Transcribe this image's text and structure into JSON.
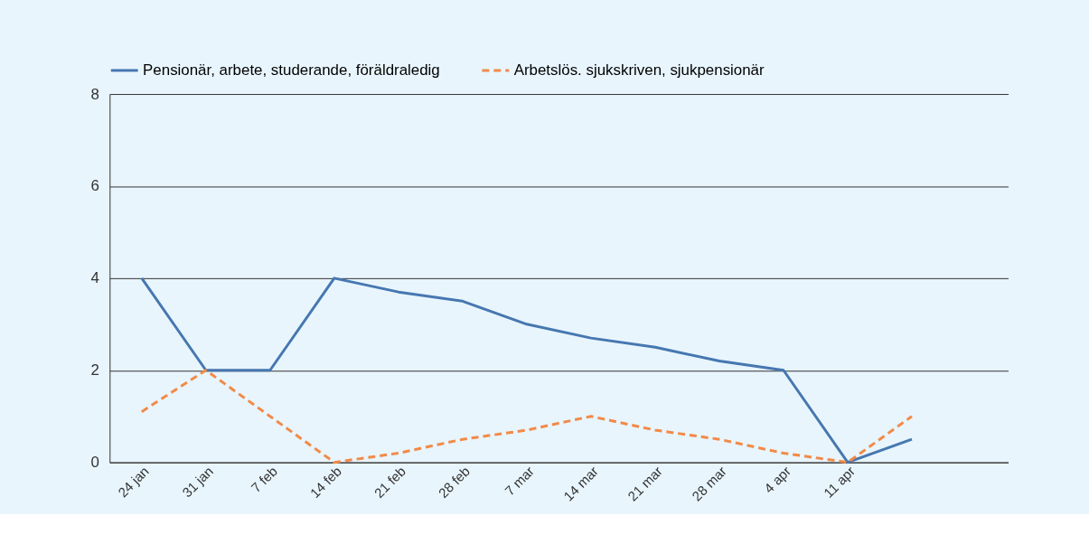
{
  "chart_data": {
    "type": "line",
    "categories": [
      "24 jan",
      "31 jan",
      "7 feb",
      "14 feb",
      "21 feb",
      "28 feb",
      "7 mar",
      "14 mar",
      "21 mar",
      "28 mar",
      "4 apr",
      "11 apr",
      null,
      null
    ],
    "series": [
      {
        "name": "Pensionär, arbete, studerande, föräldraledig",
        "color": "#4677b0",
        "line_style": "solid",
        "values": [
          4,
          2,
          2,
          4,
          3.7,
          3.5,
          3.0,
          2.7,
          2.5,
          2.2,
          2.0,
          0,
          0.5,
          null
        ]
      },
      {
        "name": "Arbetslös. sjukskriven, sjukpensionär",
        "color": "#f28a48",
        "line_style": "dashed",
        "values": [
          1.1,
          2,
          1.0,
          0,
          0.2,
          0.5,
          0.7,
          1.0,
          0.7,
          0.5,
          0.2,
          0,
          1.0,
          null
        ]
      }
    ],
    "ylim": [
      0,
      8
    ],
    "yticks": [
      0,
      2,
      4,
      6,
      8
    ],
    "grid": "y",
    "legend": "top",
    "marker": "none"
  }
}
